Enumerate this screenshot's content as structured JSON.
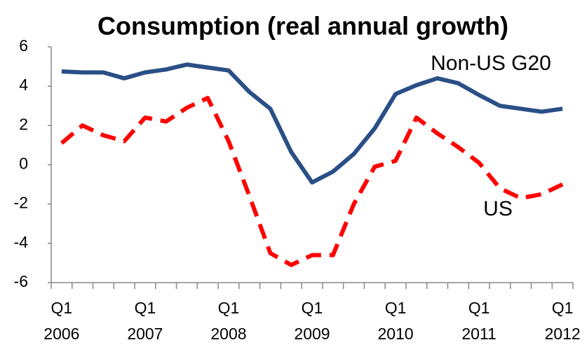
{
  "chart_data": {
    "type": "line",
    "title": "Consumption (real annual growth)",
    "categories": [
      "Q1 2006",
      null,
      null,
      null,
      "Q1 2007",
      null,
      null,
      null,
      "Q1 2008",
      null,
      null,
      null,
      "Q1 2009",
      null,
      null,
      null,
      "Q1 2010",
      null,
      null,
      null,
      "Q1 2011",
      null,
      null,
      null,
      "Q1 2012"
    ],
    "series": [
      {
        "name": "Non-US G20",
        "color": "#2a4f86",
        "dashed": false,
        "values": [
          4.75,
          4.7,
          4.7,
          4.4,
          4.7,
          4.85,
          5.1,
          4.95,
          4.8,
          3.7,
          2.85,
          0.65,
          -0.9,
          -0.35,
          0.55,
          1.85,
          3.6,
          4.05,
          4.4,
          4.15,
          3.55,
          3.0,
          2.85,
          2.7,
          2.85
        ]
      },
      {
        "name": "US",
        "color": "#ff0000",
        "dashed": true,
        "values": [
          1.1,
          2.0,
          1.5,
          1.2,
          2.4,
          2.2,
          2.9,
          3.4,
          1.2,
          -1.6,
          -4.5,
          -5.1,
          -4.6,
          -4.6,
          -2.0,
          -0.1,
          0.2,
          2.4,
          1.6,
          0.9,
          0.1,
          -1.2,
          -1.7,
          -1.5,
          -1.0
        ]
      }
    ],
    "ylim": [
      -6,
      6
    ],
    "yticks": [
      -6,
      -4,
      -2,
      0,
      2,
      4,
      6
    ],
    "grid": false,
    "legend": "inline"
  }
}
